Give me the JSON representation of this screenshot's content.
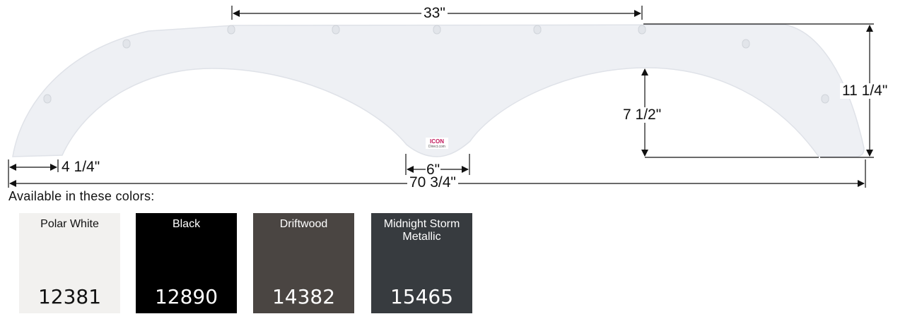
{
  "dimensions": {
    "top_length": "33\"",
    "height": "11 1/4\"",
    "arch_height": "7 1/2\"",
    "end_width": "4 1/4\"",
    "center_width": "6\"",
    "total_length": "70 3/4\""
  },
  "logo": {
    "text": "ICON Direct.com"
  },
  "colors_heading": "Available in these colors:",
  "swatches": [
    {
      "name": "Polar White",
      "code": "12381",
      "color": "#f2f1ef",
      "text_color": "#111111"
    },
    {
      "name": "Black",
      "code": "12890",
      "color": "#000000",
      "text_color": "#ffffff"
    },
    {
      "name": "Driftwood",
      "code": "14382",
      "color": "#4a4542",
      "text_color": "#ffffff"
    },
    {
      "name": "Midnight Storm Metallic",
      "code": "15465",
      "color": "#373b3f",
      "text_color": "#ffffff"
    }
  ]
}
